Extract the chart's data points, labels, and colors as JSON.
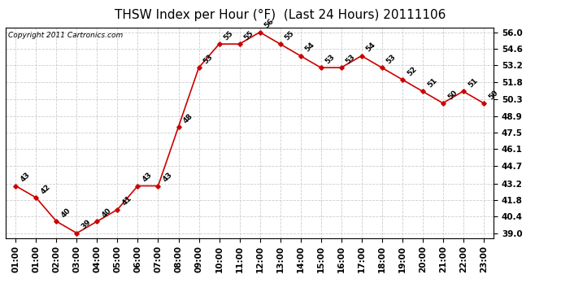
{
  "title": "THSW Index per Hour (°F)  (Last 24 Hours) 20111106",
  "copyright": "Copyright 2011 Cartronics.com",
  "hours": [
    "01:00",
    "01:00",
    "02:00",
    "03:00",
    "04:00",
    "05:00",
    "06:00",
    "07:00",
    "08:00",
    "09:00",
    "10:00",
    "11:00",
    "12:00",
    "13:00",
    "14:00",
    "15:00",
    "16:00",
    "17:00",
    "18:00",
    "19:00",
    "20:00",
    "21:00",
    "22:00",
    "23:00"
  ],
  "x_indices": [
    0,
    1,
    2,
    3,
    4,
    5,
    6,
    7,
    8,
    9,
    10,
    11,
    12,
    13,
    14,
    15,
    16,
    17,
    18,
    19,
    20,
    21,
    22,
    23
  ],
  "values": [
    43,
    42,
    40,
    39,
    40,
    41,
    43,
    43,
    48,
    53,
    55,
    55,
    56,
    55,
    54,
    53,
    53,
    54,
    53,
    52,
    51,
    50,
    51,
    50
  ],
  "labels": [
    "43",
    "42",
    "40",
    "39",
    "40",
    "41",
    "43",
    "43",
    "48",
    "53",
    "55",
    "55",
    "56",
    "55",
    "54",
    "53",
    "53",
    "54",
    "53",
    "52",
    "51",
    "50",
    "51",
    "50"
  ],
  "line_color": "#cc0000",
  "marker_color": "#cc0000",
  "bg_color": "#ffffff",
  "plot_bg_color": "#ffffff",
  "grid_color": "#cccccc",
  "yticks": [
    39.0,
    40.4,
    41.8,
    43.2,
    44.7,
    46.1,
    47.5,
    48.9,
    50.3,
    51.8,
    53.2,
    54.6,
    56.0
  ],
  "ylim_min": 38.6,
  "ylim_max": 56.4,
  "title_fontsize": 11,
  "label_fontsize": 6.5,
  "tick_fontsize": 7.5,
  "copyright_fontsize": 6.5
}
